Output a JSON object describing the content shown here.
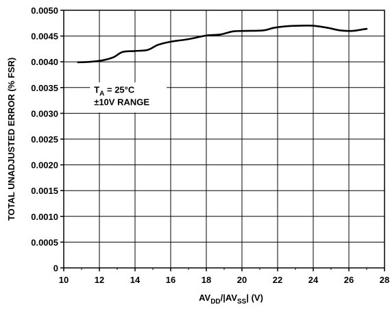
{
  "chart_data": {
    "type": "line",
    "title": "",
    "xlabel_parts": [
      {
        "text": "AV",
        "sub": false
      },
      {
        "text": "DD",
        "sub": true
      },
      {
        "text": "/|AV",
        "sub": false
      },
      {
        "text": "SS",
        "sub": true
      },
      {
        "text": "| (V)",
        "sub": false
      }
    ],
    "ylabel": "TOTAL UNADJUSTED ERROR (% FSR)",
    "xlim": [
      10,
      28
    ],
    "ylim": [
      0,
      0.005
    ],
    "x_ticks": [
      10,
      12,
      14,
      16,
      18,
      20,
      22,
      24,
      26,
      28
    ],
    "x_tick_labels": [
      "10",
      "12",
      "14",
      "16",
      "18",
      "20",
      "22",
      "24",
      "26",
      "28"
    ],
    "y_ticks": [
      0,
      0.0005,
      0.001,
      0.0015,
      0.002,
      0.0025,
      0.003,
      0.0035,
      0.004,
      0.0045,
      0.005
    ],
    "y_tick_labels": [
      "0",
      "0.0005",
      "0.0010",
      "0.0015",
      "0.0020",
      "0.0025",
      "0.0030",
      "0.0035",
      "0.0040",
      "0.0045",
      "0.0050"
    ],
    "x_minor_ticks": [
      11,
      13,
      15,
      17,
      19,
      21,
      23,
      25,
      27
    ],
    "grid": true,
    "series": [
      {
        "color": "#000000",
        "x": [
          10.8,
          11.5,
          12.2,
          12.8,
          13.3,
          14.0,
          14.7,
          15.3,
          16.0,
          17.0,
          18.0,
          18.8,
          19.5,
          20.2,
          21.2,
          21.8,
          22.5,
          23.2,
          24.0,
          24.8,
          25.5,
          26.2,
          26.8,
          27.0
        ],
        "y": [
          0.00399,
          0.004,
          0.00403,
          0.00409,
          0.00419,
          0.00421,
          0.00423,
          0.00433,
          0.00439,
          0.00444,
          0.00451,
          0.00453,
          0.00459,
          0.0046,
          0.00461,
          0.00466,
          0.00469,
          0.0047,
          0.0047,
          0.00466,
          0.00461,
          0.0046,
          0.00463,
          0.00464
        ]
      }
    ],
    "annotation": {
      "line1_main": "T",
      "line1_sub": "A",
      "line1_rest": " = 25°C",
      "line2": "±10V RANGE",
      "at_x": 11.7,
      "at_y": 0.0034
    }
  }
}
